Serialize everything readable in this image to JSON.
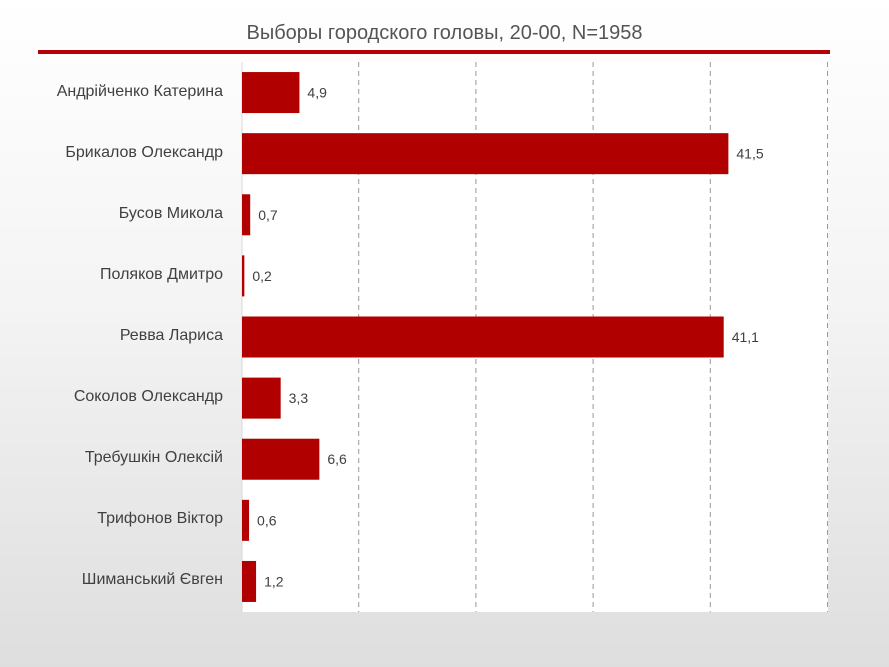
{
  "chart_data": {
    "type": "bar",
    "orientation": "horizontal",
    "title": "Выборы городского головы, 20-00, N=1958",
    "categories": [
      "Андрійченко Катерина",
      "Брикалов Олександр",
      "Бусов Микола",
      "Поляков Дмитро",
      "Ревва Лариса",
      "Соколов Олександр",
      "Требушкін Олексій",
      "Трифонов Віктор",
      "Шиманський Євген"
    ],
    "values": [
      4.9,
      41.5,
      0.7,
      0.2,
      41.1,
      3.3,
      6.6,
      0.6,
      1.2
    ],
    "value_labels": [
      "4,9",
      "41,5",
      "0,7",
      "0,2",
      "41,1",
      "3,3",
      "6,6",
      "0,6",
      "1,2"
    ],
    "xlim": [
      0,
      50
    ],
    "xticks": [
      10,
      20,
      30,
      40,
      50
    ],
    "grid": "vertical dashed",
    "bar_color": "#b00000",
    "accent_color": "#b50006",
    "legend": "none"
  }
}
